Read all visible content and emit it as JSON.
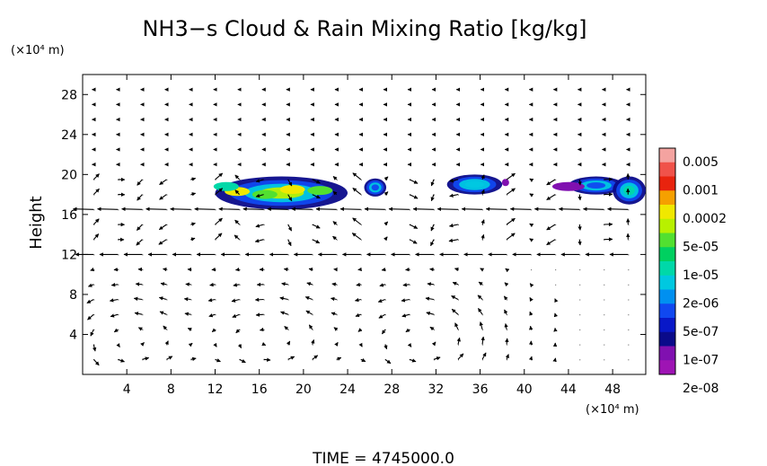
{
  "chart_data": {
    "type": "heatmap",
    "title": "NH3−s Cloud & Rain Mixing Ratio [kg/kg]",
    "ylabel": "Height",
    "y_unit": "(×10⁴ m)",
    "x_unit": "(×10⁴ m)",
    "xlim": [
      0,
      51
    ],
    "ylim": [
      0,
      30
    ],
    "x_ticks": [
      "4",
      "8",
      "12",
      "16",
      "20",
      "24",
      "28",
      "32",
      "36",
      "40",
      "44",
      "48"
    ],
    "y_ticks": [
      "4",
      "8",
      "12",
      "16",
      "20",
      "24",
      "28"
    ],
    "x_tick_values": [
      4,
      8,
      12,
      16,
      20,
      24,
      28,
      32,
      36,
      40,
      44,
      48
    ],
    "y_tick_values": [
      4,
      8,
      12,
      16,
      20,
      24,
      28
    ],
    "footer": "TIME  =  4745000.0",
    "colorbar": {
      "labels": [
        "0.005",
        "0.001",
        "0.0002",
        "5e-05",
        "1e-05",
        "2e-06",
        "5e-07",
        "1e-07",
        "2e-08"
      ],
      "colors": [
        "#f4a3a0",
        "#f0524a",
        "#e8230e",
        "#f5a000",
        "#f0e800",
        "#b8f000",
        "#52e030",
        "#00d060",
        "#00d8a8",
        "#00c8e0",
        "#0090f0",
        "#1048f0",
        "#0818c8",
        "#0a0a8a",
        "#8010b0",
        "#9e14b4"
      ]
    },
    "cloud_regions": [
      {
        "x_range": [
          12,
          24
        ],
        "y_range": [
          16.5,
          19.8
        ],
        "peak": "5e-05"
      },
      {
        "x_range": [
          25.5,
          27.5
        ],
        "y_range": [
          17.8,
          19.6
        ],
        "peak": "1e-07"
      },
      {
        "x_range": [
          33,
          38
        ],
        "y_range": [
          18,
          20
        ],
        "peak": "2e-06"
      },
      {
        "x_range": [
          44,
          49
        ],
        "y_range": [
          18,
          19.8
        ],
        "peak": "1e-07"
      },
      {
        "x_range": [
          48,
          51
        ],
        "y_range": [
          17,
          19.8
        ],
        "peak": "5e-06"
      }
    ],
    "wind_field": "arrows; dominant circulation cells centered near x=4, 17, 31 (×10⁴ m) below 10 (×10⁴ m); strong westward flow at heights 12 and 17"
  }
}
